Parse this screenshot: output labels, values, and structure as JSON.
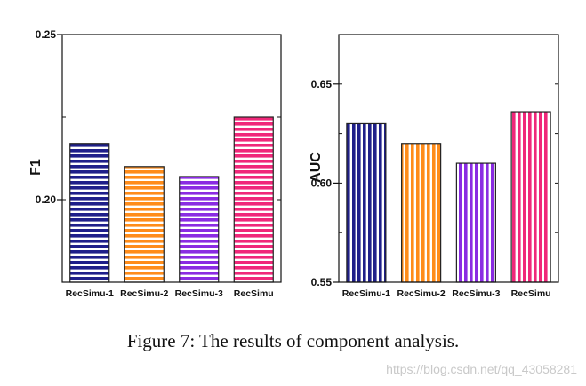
{
  "chart_data": [
    {
      "type": "bar",
      "categories": [
        "RecSimu-1",
        "RecSimu-2",
        "RecSimu-3",
        "RecSimu"
      ],
      "values": [
        0.217,
        0.21,
        0.207,
        0.225
      ],
      "colors": [
        "#1f1f8a",
        "#ff8c1a",
        "#8a2be2",
        "#f0287a"
      ],
      "stripe": "horizontal",
      "title": "",
      "xlabel": "",
      "ylabel": "F1",
      "ylim": [
        0.175,
        0.25
      ],
      "yticks": [
        0.2,
        0.25
      ],
      "ytick_labels": [
        "0.20",
        "0.25"
      ]
    },
    {
      "type": "bar",
      "categories": [
        "RecSimu-1",
        "RecSimu-2",
        "RecSimu-3",
        "RecSimu"
      ],
      "values": [
        0.63,
        0.62,
        0.61,
        0.636
      ],
      "colors": [
        "#1f1f8a",
        "#ff8c1a",
        "#8a2be2",
        "#f0287a"
      ],
      "stripe": "vertical",
      "title": "",
      "xlabel": "",
      "ylabel": "AUC",
      "ylim": [
        0.55,
        0.675
      ],
      "yticks": [
        0.55,
        0.6,
        0.65
      ],
      "ytick_labels": [
        "0.55",
        "0.60",
        "0.65"
      ]
    }
  ],
  "caption": "Figure 7: The results of component analysis.",
  "watermark": "https://blog.csdn.net/qq_43058281"
}
